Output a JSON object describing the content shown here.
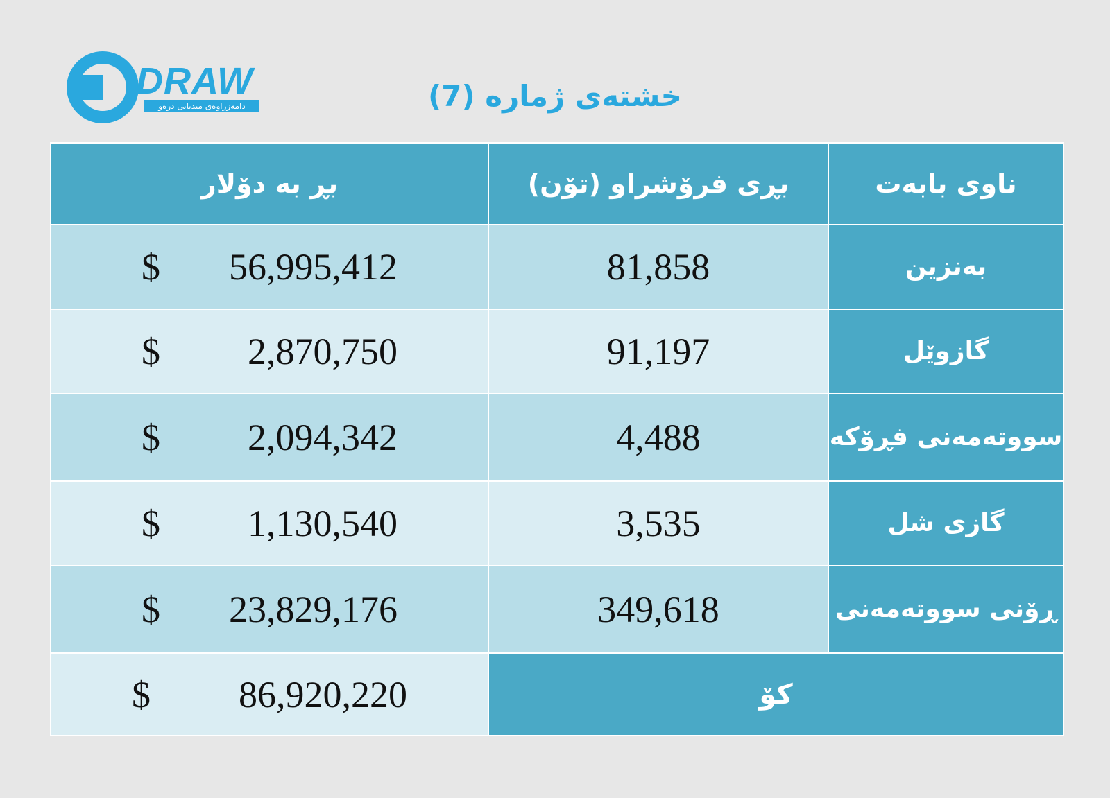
{
  "logo": {
    "word": "DRAW",
    "tagline": "دامەزراوەی میدیایی درەو"
  },
  "title": "خشتەی ژمارە (7)",
  "table": {
    "headers": {
      "item_name": "ناوی بابەت",
      "quantity": "بڕی فرۆشراو (تۆن)",
      "amount": "بڕ بە دۆلار"
    },
    "currency_symbol": "$",
    "rows": [
      {
        "name": "بەنزین",
        "quantity": "81,858",
        "amount": "56,995,412"
      },
      {
        "name": "گازوێل",
        "quantity": "91,197",
        "amount": "2,870,750"
      },
      {
        "name": "سووتەمەنی فڕۆکە",
        "quantity": "4,488",
        "amount": "2,094,342"
      },
      {
        "name": "گازی شل",
        "quantity": "3,535",
        "amount": "1,130,540"
      },
      {
        "name": "ڕۆنی سووتەمەنی",
        "quantity": "349,618",
        "amount": "23,829,176"
      }
    ],
    "total": {
      "label": "کۆ",
      "amount": "86,920,220"
    }
  },
  "colors": {
    "header": "#4aa9c6",
    "row_dark": "#b7dde8",
    "row_light": "#daedf3",
    "brand": "#2aa8de"
  }
}
